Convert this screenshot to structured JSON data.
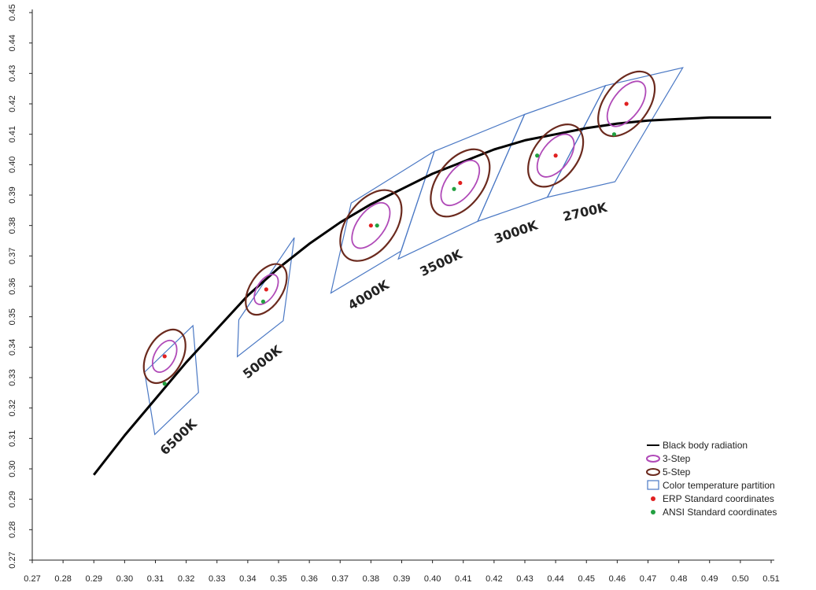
{
  "colors": {
    "blackbody": "#000000",
    "step3": "#b04ab8",
    "step5": "#6b2a1e",
    "partition": "#4a78c4",
    "erp": "#e02020",
    "ansi": "#22a040"
  },
  "chart_data": {
    "type": "scatter",
    "title": "",
    "xlabel": "",
    "ylabel": "",
    "xlim": [
      0.27,
      0.51
    ],
    "ylim": [
      0.27,
      0.45
    ],
    "grid": false,
    "x_ticks": [
      "0.27",
      "0.28",
      "0.29",
      "0.30",
      "0.31",
      "0.32",
      "0.33",
      "0.34",
      "0.35",
      "0.36",
      "0.37",
      "0.38",
      "0.39",
      "0.40",
      "0.41",
      "0.42",
      "0.43",
      "0.44",
      "0.45",
      "0.46",
      "0.47",
      "0.48",
      "0.49",
      "0.50",
      "0.51"
    ],
    "y_ticks": [
      "0.27",
      "0.28",
      "0.29",
      "0.30",
      "0.31",
      "0.32",
      "0.33",
      "0.34",
      "0.35",
      "0.36",
      "0.37",
      "0.38",
      "0.39",
      "0.40",
      "0.41",
      "0.42",
      "0.43",
      "0.44",
      "0.45"
    ],
    "blackbody_curve": [
      [
        0.29,
        0.298
      ],
      [
        0.3,
        0.311
      ],
      [
        0.31,
        0.323
      ],
      [
        0.32,
        0.335
      ],
      [
        0.33,
        0.346
      ],
      [
        0.34,
        0.357
      ],
      [
        0.35,
        0.366
      ],
      [
        0.36,
        0.374
      ],
      [
        0.37,
        0.381
      ],
      [
        0.38,
        0.387
      ],
      [
        0.39,
        0.392
      ],
      [
        0.4,
        0.397
      ],
      [
        0.41,
        0.401
      ],
      [
        0.42,
        0.405
      ],
      [
        0.43,
        0.408
      ],
      [
        0.44,
        0.41
      ],
      [
        0.45,
        0.412
      ],
      [
        0.46,
        0.4135
      ],
      [
        0.47,
        0.4145
      ],
      [
        0.48,
        0.415
      ],
      [
        0.49,
        0.4155
      ],
      [
        0.5,
        0.4155
      ],
      [
        0.51,
        0.4155
      ]
    ],
    "zones": [
      {
        "label": "6500K",
        "partition": [
          [
            0.3065,
            0.3318
          ],
          [
            0.3222,
            0.3471
          ],
          [
            0.324,
            0.3251
          ],
          [
            0.3098,
            0.3113
          ]
        ],
        "erp": [
          0.313,
          0.337
        ],
        "ansi": [
          0.313,
          0.328
        ],
        "step3": {
          "cx": 0.313,
          "cy": 0.337,
          "a": 0.0056,
          "b": 0.0033,
          "angle": 61
        },
        "step5": {
          "cx": 0.313,
          "cy": 0.337,
          "a": 0.0094,
          "b": 0.0058,
          "angle": 61
        }
      },
      {
        "label": "5000K",
        "partition": [
          [
            0.3371,
            0.349
          ],
          [
            0.3551,
            0.376
          ],
          [
            0.3515,
            0.3487
          ],
          [
            0.3366,
            0.3369
          ]
        ],
        "erp": [
          0.346,
          0.359
        ],
        "ansi": [
          0.345,
          0.355
        ],
        "step3": {
          "cx": 0.346,
          "cy": 0.359,
          "a": 0.0055,
          "b": 0.003,
          "angle": 57
        },
        "step5": {
          "cx": 0.346,
          "cy": 0.359,
          "a": 0.0092,
          "b": 0.0053,
          "angle": 57
        }
      },
      {
        "label": "4000K",
        "partition": [
          [
            0.3736,
            0.3874
          ],
          [
            0.4006,
            0.4044
          ],
          [
            0.3898,
            0.3716
          ],
          [
            0.367,
            0.3578
          ]
        ],
        "erp": [
          0.38,
          0.38
        ],
        "ansi": [
          0.382,
          0.38
        ],
        "step3": {
          "cx": 0.38,
          "cy": 0.38,
          "a": 0.0085,
          "b": 0.0045,
          "angle": 54
        },
        "step5": {
          "cx": 0.38,
          "cy": 0.38,
          "a": 0.013,
          "b": 0.008,
          "angle": 54
        }
      },
      {
        "label": "3500K",
        "partition": [
          [
            0.4006,
            0.4044
          ],
          [
            0.4299,
            0.4165
          ],
          [
            0.4147,
            0.3814
          ],
          [
            0.3889,
            0.369
          ]
        ],
        "erp": [
          0.409,
          0.394
        ],
        "ansi": [
          0.407,
          0.392
        ],
        "step3": {
          "cx": 0.409,
          "cy": 0.394,
          "a": 0.0085,
          "b": 0.0045,
          "angle": 53
        },
        "step5": {
          "cx": 0.409,
          "cy": 0.394,
          "a": 0.0125,
          "b": 0.0075,
          "angle": 53
        }
      },
      {
        "label": "3000K",
        "partition": [
          [
            0.4299,
            0.4165
          ],
          [
            0.4562,
            0.426
          ],
          [
            0.4373,
            0.3893
          ],
          [
            0.4147,
            0.3814
          ]
        ],
        "erp": [
          0.44,
          0.403
        ],
        "ansi": [
          0.434,
          0.403
        ],
        "step3": {
          "cx": 0.44,
          "cy": 0.403,
          "a": 0.008,
          "b": 0.0045,
          "angle": 53
        },
        "step5": {
          "cx": 0.44,
          "cy": 0.403,
          "a": 0.0115,
          "b": 0.0072,
          "angle": 53
        }
      },
      {
        "label": "2700K",
        "partition": [
          [
            0.4562,
            0.426
          ],
          [
            0.4813,
            0.4319
          ],
          [
            0.4593,
            0.3944
          ],
          [
            0.4373,
            0.3893
          ]
        ],
        "erp": [
          0.463,
          0.42
        ],
        "ansi": [
          0.459,
          0.41
        ],
        "step3": {
          "cx": 0.463,
          "cy": 0.42,
          "a": 0.0085,
          "b": 0.0045,
          "angle": 53
        },
        "step5": {
          "cx": 0.463,
          "cy": 0.42,
          "a": 0.012,
          "b": 0.0072,
          "angle": 53
        }
      }
    ],
    "legend": {
      "position": "bottom-right",
      "items": [
        {
          "key": "blackbody",
          "label": "Black body radiation"
        },
        {
          "key": "step3",
          "label": "3-Step"
        },
        {
          "key": "step5",
          "label": "5-Step"
        },
        {
          "key": "partition",
          "label": "Color temperature partition"
        },
        {
          "key": "erp",
          "label": "ERP Standard coordinates"
        },
        {
          "key": "ansi",
          "label": "ANSI Standard coordinates"
        }
      ]
    }
  }
}
